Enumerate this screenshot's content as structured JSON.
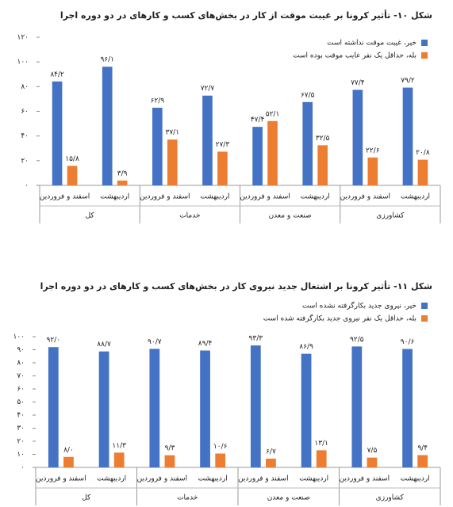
{
  "chart_data": [
    {
      "type": "bar",
      "title": "شکل ۱۰- تأثیر کرونا بر غیبت موقت از کار در بخش‌های کسب و کارهای در دو دوره اجرا",
      "categories": [
        "اسفند و فروردین",
        "اردیبهشت",
        "اسفند و فروردین",
        "اردیبهشت",
        "اسفند و فروردین",
        "اردیبهشت",
        "اسفند و فروردین",
        "اردیبهشت"
      ],
      "group_labels": [
        "کل",
        "خدمات",
        "صنعت و معدن",
        "کشاورزی"
      ],
      "series": [
        {
          "name": "خیر، غیبت موقت نداشته است",
          "color": "#4472c4",
          "values": [
            84.2,
            96.1,
            62.9,
            72.7,
            47.4,
            67.5,
            77.4,
            79.2
          ],
          "value_labels": [
            "۸۴/۲",
            "۹۶/۱",
            "۶۲/۹",
            "۷۲/۷",
            "۴۷/۴",
            "۶۷/۵",
            "۷۷/۴",
            "۷۹/۲"
          ]
        },
        {
          "name": "بله، حداقل یک نفر غایب موقت بوده است",
          "color": "#ed7d31",
          "values": [
            15.8,
            3.9,
            37.1,
            27.3,
            52.1,
            32.5,
            22.6,
            20.8
          ],
          "value_labels": [
            "۱۵/۸",
            "۳/۹",
            "۳۷/۱",
            "۲۷/۳",
            "۵۲/۱",
            "۳۲/۵",
            "۲۲/۶",
            "۲۰/۸"
          ]
        }
      ],
      "ylim": [
        0,
        120
      ],
      "yticks": [
        {
          "value": 0,
          "label": "۰"
        },
        {
          "value": 20,
          "label": "۲۰"
        },
        {
          "value": 40,
          "label": "۴۰"
        },
        {
          "value": 60,
          "label": "۶۰"
        },
        {
          "value": 80,
          "label": "۸۰"
        },
        {
          "value": 100,
          "label": "۱۰۰"
        },
        {
          "value": 120,
          "label": "۱۲۰"
        }
      ]
    },
    {
      "type": "bar",
      "title": "شکل ۱۱- تأثیر کرونا بر اشتغال جدید نیروی کار در بخش‌های کسب و کارهای در دو دوره اجرا",
      "categories": [
        "اسفند و فروردین",
        "اردیبهشت",
        "اسفند و فروردین",
        "اردیبهشت",
        "اسفند و فروردین",
        "اردیبهشت",
        "اسفند و فروردین",
        "اردیبهشت"
      ],
      "group_labels": [
        "کل",
        "خدمات",
        "صنعت و معدن",
        "کشاورزی"
      ],
      "series": [
        {
          "name": "خیر، نیروی جدید بکارگرفته نشده است",
          "color": "#4472c4",
          "values": [
            92.0,
            88.7,
            90.7,
            89.4,
            93.3,
            86.9,
            92.5,
            90.6
          ],
          "value_labels": [
            "۹۲/۰",
            "۸۸/۷",
            "۹۰/۷",
            "۸۹/۴",
            "۹۳/۳",
            "۸۶/۹",
            "۹۲/۵",
            "۹۰/۶"
          ]
        },
        {
          "name": "بله، حداقل یک نفر نیروی جدید بکارگرفته شده است",
          "color": "#ed7d31",
          "values": [
            8.0,
            11.3,
            9.3,
            10.6,
            6.7,
            13.1,
            7.5,
            9.4
          ],
          "value_labels": [
            "۸/۰",
            "۱۱/۳",
            "۹/۳",
            "۱۰/۶",
            "۶/۷",
            "۱۳/۱",
            "۷/۵",
            "۹/۴"
          ]
        }
      ],
      "ylim": [
        0,
        100
      ],
      "yticks": [
        {
          "value": 0,
          "label": "۰"
        },
        {
          "value": 10,
          "label": "۱۰"
        },
        {
          "value": 20,
          "label": "۲۰"
        },
        {
          "value": 30,
          "label": "۳۰"
        },
        {
          "value": 40,
          "label": "۴۰"
        },
        {
          "value": 50,
          "label": "۵۰"
        },
        {
          "value": 60,
          "label": "۶۰"
        },
        {
          "value": 70,
          "label": "۷۰"
        },
        {
          "value": 80,
          "label": "۸۰"
        },
        {
          "value": 90,
          "label": "۹۰"
        },
        {
          "value": 100,
          "label": "۱۰۰"
        }
      ]
    }
  ]
}
